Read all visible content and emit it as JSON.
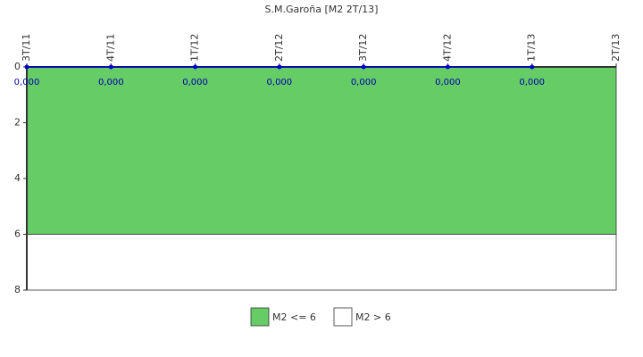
{
  "chart_data": {
    "type": "line",
    "title": "S.M.Garoña [M2 2T/13]",
    "categories": [
      "3T/11",
      "4T/11",
      "1T/12",
      "2T/12",
      "3T/12",
      "4T/12",
      "1T/13",
      "2T/13"
    ],
    "series": [
      {
        "name": "M2",
        "color": "#0000cc",
        "values": [
          0,
          0,
          0,
          0,
          0,
          0,
          0,
          null
        ],
        "value_labels": [
          "0,000",
          "0,000",
          "0,000",
          "0,000",
          "0,000",
          "0,000",
          "0,000",
          null
        ]
      }
    ],
    "bands": [
      {
        "name": "M2 <= 6",
        "color": "#66cc66",
        "from": 0,
        "to": 6
      },
      {
        "name": "M2 > 6",
        "color": "#ffffff",
        "from": 6,
        "to": 8
      }
    ],
    "ylim": [
      0,
      8
    ],
    "yticks": [
      0,
      2,
      4,
      6,
      8
    ],
    "y_inverted": true
  }
}
